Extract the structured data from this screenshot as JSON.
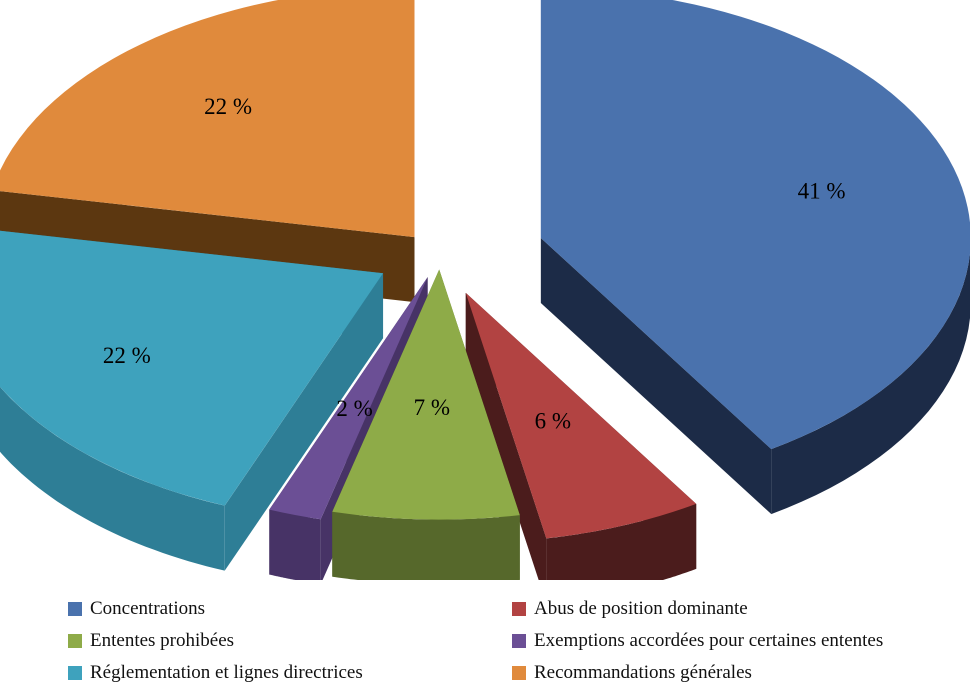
{
  "chart_data": {
    "type": "pie",
    "style": "exploded-3d",
    "slices": [
      {
        "name": "Concentrations",
        "value": 41,
        "label": "41 %",
        "color": "#4a72ad",
        "side_color": "#1c2b47"
      },
      {
        "name": "Abus de position  dominante",
        "value": 6,
        "label": "6 %",
        "color": "#b24342",
        "side_color": "#4b1c1c"
      },
      {
        "name": "Ententes  prohibées",
        "value": 7,
        "label": "7 %",
        "color": "#8eab48",
        "side_color": "#56682b"
      },
      {
        "name": "Exemptions accordées pour certaines ententes",
        "value": 2,
        "label": "2 %",
        "color": "#6b4f95",
        "side_color": "#473366"
      },
      {
        "name": "Réglementation   et lignes  directrices",
        "value": 22,
        "label": "22 %",
        "color": "#3ea2bd",
        "side_color": "#2e7e96"
      },
      {
        "name": "Recommandations   générales",
        "value": 22,
        "label": "22 %",
        "color": "#e08a3c",
        "side_color": "#5c3710"
      }
    ],
    "legend_placement": "bottom"
  }
}
